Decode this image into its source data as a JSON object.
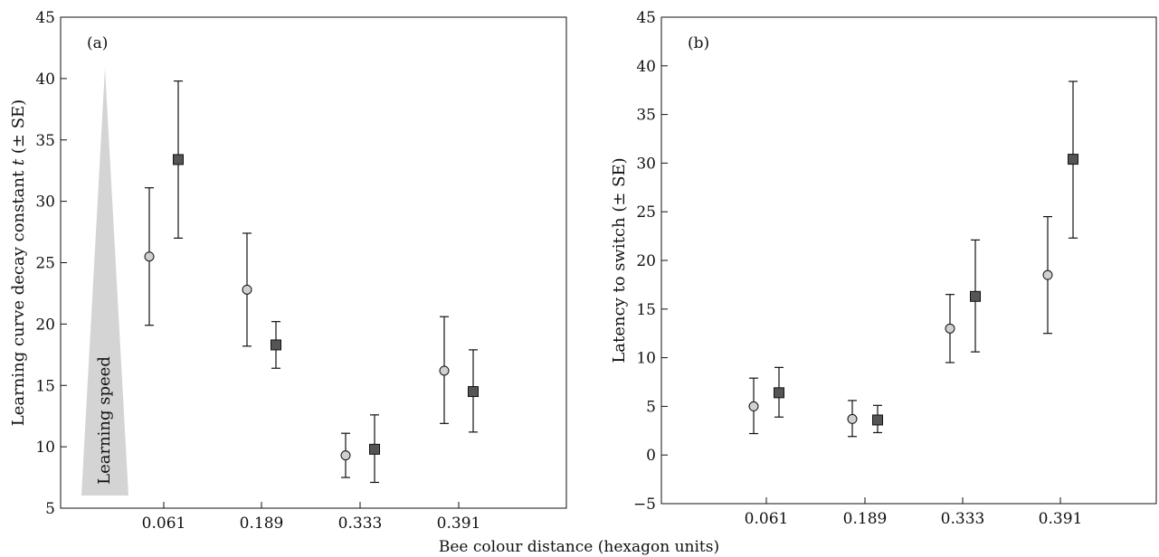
{
  "figure": {
    "shared_xlabel": "Bee colour distance (hexagon units)"
  },
  "chart_data": [
    {
      "type": "scatter",
      "panel_label": "(a)",
      "categories": [
        "0.061",
        "0.189",
        "0.333",
        "0.391"
      ],
      "ylim": [
        5,
        45
      ],
      "yticks": [
        5,
        10,
        15,
        20,
        25,
        30,
        35,
        40,
        45
      ],
      "ylabel": "Learning curve decay constant",
      "ylabel_italic": "t",
      "ylabel_suffix": "(± SE)",
      "xlabel": "",
      "annotation": "Learning speed",
      "grid": false,
      "series": [
        {
          "marker": "circle",
          "color": "#d0d0d0",
          "values": [
            25.5,
            22.8,
            9.3,
            16.2
          ],
          "lower": [
            19.9,
            18.2,
            7.5,
            11.9
          ],
          "upper": [
            31.1,
            27.4,
            11.1,
            20.6
          ]
        },
        {
          "marker": "square",
          "color": "#555555",
          "values": [
            33.4,
            18.3,
            9.8,
            14.5
          ],
          "lower": [
            27.0,
            16.4,
            7.1,
            11.2
          ],
          "upper": [
            39.8,
            20.2,
            12.6,
            17.9
          ]
        }
      ]
    },
    {
      "type": "scatter",
      "panel_label": "(b)",
      "categories": [
        "0.061",
        "0.189",
        "0.333",
        "0.391"
      ],
      "ylim": [
        -5,
        45
      ],
      "yticks": [
        -5,
        0,
        5,
        10,
        15,
        20,
        25,
        30,
        35,
        40,
        45
      ],
      "ytick_labels": [
        "−5",
        "0",
        "5",
        "10",
        "15",
        "20",
        "25",
        "30",
        "35",
        "40",
        "45"
      ],
      "ylabel": "Latency to switch (± SE)",
      "xlabel": "",
      "grid": false,
      "series": [
        {
          "marker": "circle",
          "color": "#d0d0d0",
          "values": [
            5.0,
            3.7,
            13.0,
            18.5
          ],
          "lower": [
            2.2,
            1.9,
            9.5,
            12.5
          ],
          "upper": [
            7.9,
            5.6,
            16.5,
            24.5
          ]
        },
        {
          "marker": "square",
          "color": "#555555",
          "values": [
            6.4,
            3.6,
            16.3,
            30.4
          ],
          "lower": [
            3.9,
            2.3,
            10.6,
            22.3
          ],
          "upper": [
            9.0,
            5.1,
            22.1,
            38.4
          ]
        }
      ]
    }
  ]
}
